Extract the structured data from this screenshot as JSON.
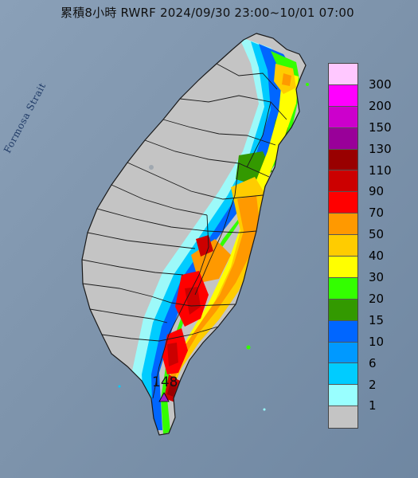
{
  "title": "累積8小時 RWRF 2024/09/30 23:00~10/01 07:00",
  "strait_label": "Formosa Strait",
  "max_marker": {
    "value": "148",
    "color": "#a020c8"
  },
  "colors": {
    "sea": "#7f95ad",
    "land": "#c4c4c4",
    "outline": "#1a1a1a"
  },
  "legend": {
    "items": [
      {
        "label": "300",
        "color": "#ffc8ff"
      },
      {
        "label": "200",
        "color": "#ff00ff"
      },
      {
        "label": "150",
        "color": "#cc00cc"
      },
      {
        "label": "130",
        "color": "#990099"
      },
      {
        "label": "110",
        "color": "#990000"
      },
      {
        "label": "90",
        "color": "#cc0000"
      },
      {
        "label": "70",
        "color": "#ff0000"
      },
      {
        "label": "50",
        "color": "#ff9900"
      },
      {
        "label": "40",
        "color": "#ffcc00"
      },
      {
        "label": "30",
        "color": "#ffff00"
      },
      {
        "label": "20",
        "color": "#33ff00"
      },
      {
        "label": "15",
        "color": "#339900"
      },
      {
        "label": "10",
        "color": "#0066ff"
      },
      {
        "label": "6",
        "color": "#0099ff"
      },
      {
        "label": "2",
        "color": "#00ccff"
      },
      {
        "label": "1",
        "color": "#99ffff"
      },
      {
        "label": "",
        "color": "#c4c4c4"
      }
    ]
  }
}
